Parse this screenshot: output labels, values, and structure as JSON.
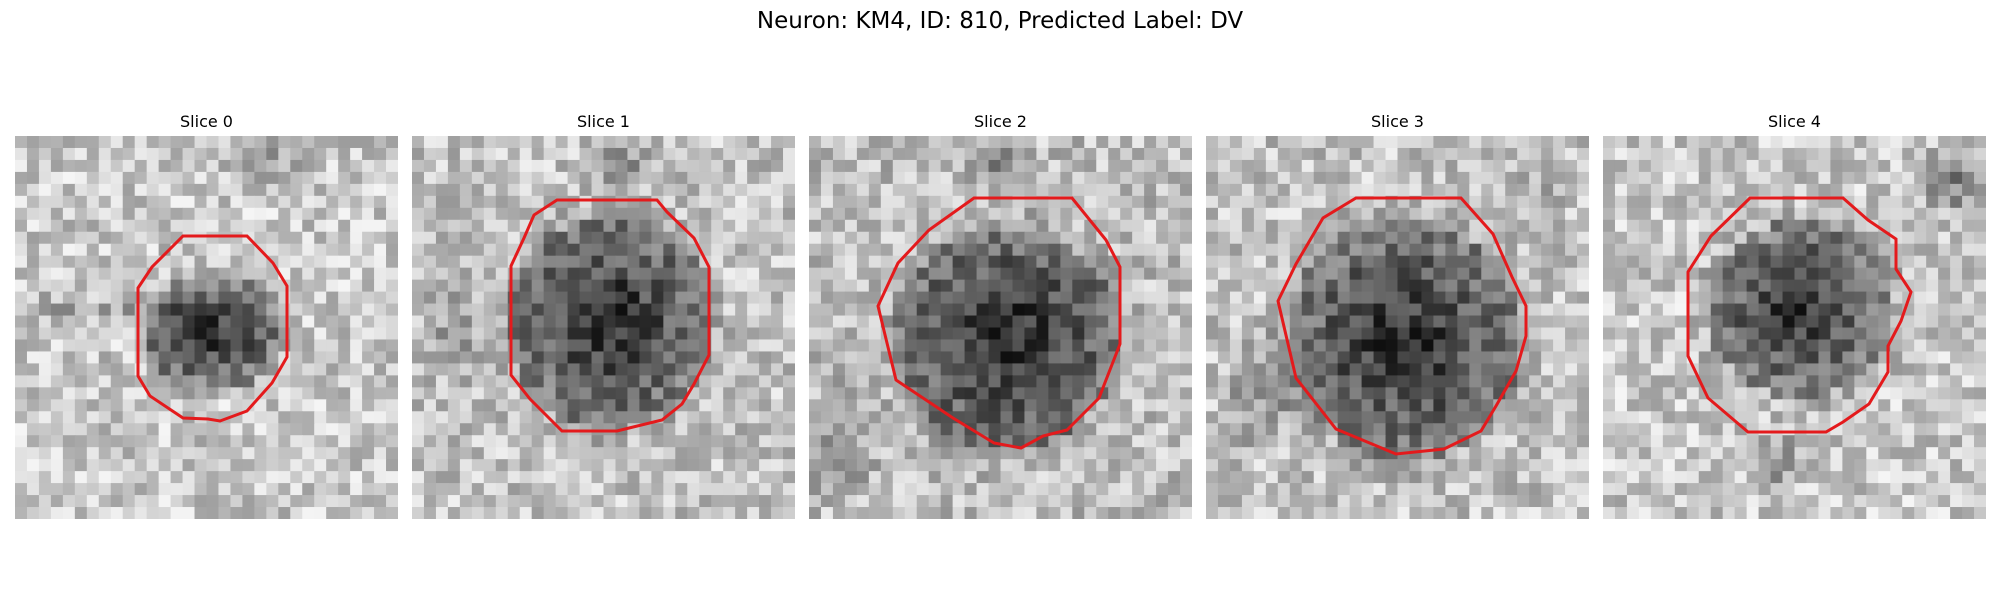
{
  "figure": {
    "title": "Neuron: KM4, ID: 810, Predicted Label: DV"
  },
  "panels": [
    {
      "title": "Slice 0",
      "outline_color": "#e41a1c"
    },
    {
      "title": "Slice 1",
      "outline_color": "#e41a1c"
    },
    {
      "title": "Slice 2",
      "outline_color": "#e41a1c"
    },
    {
      "title": "Slice 3",
      "outline_color": "#e41a1c"
    },
    {
      "title": "Slice 4",
      "outline_color": "#e41a1c"
    }
  ]
}
